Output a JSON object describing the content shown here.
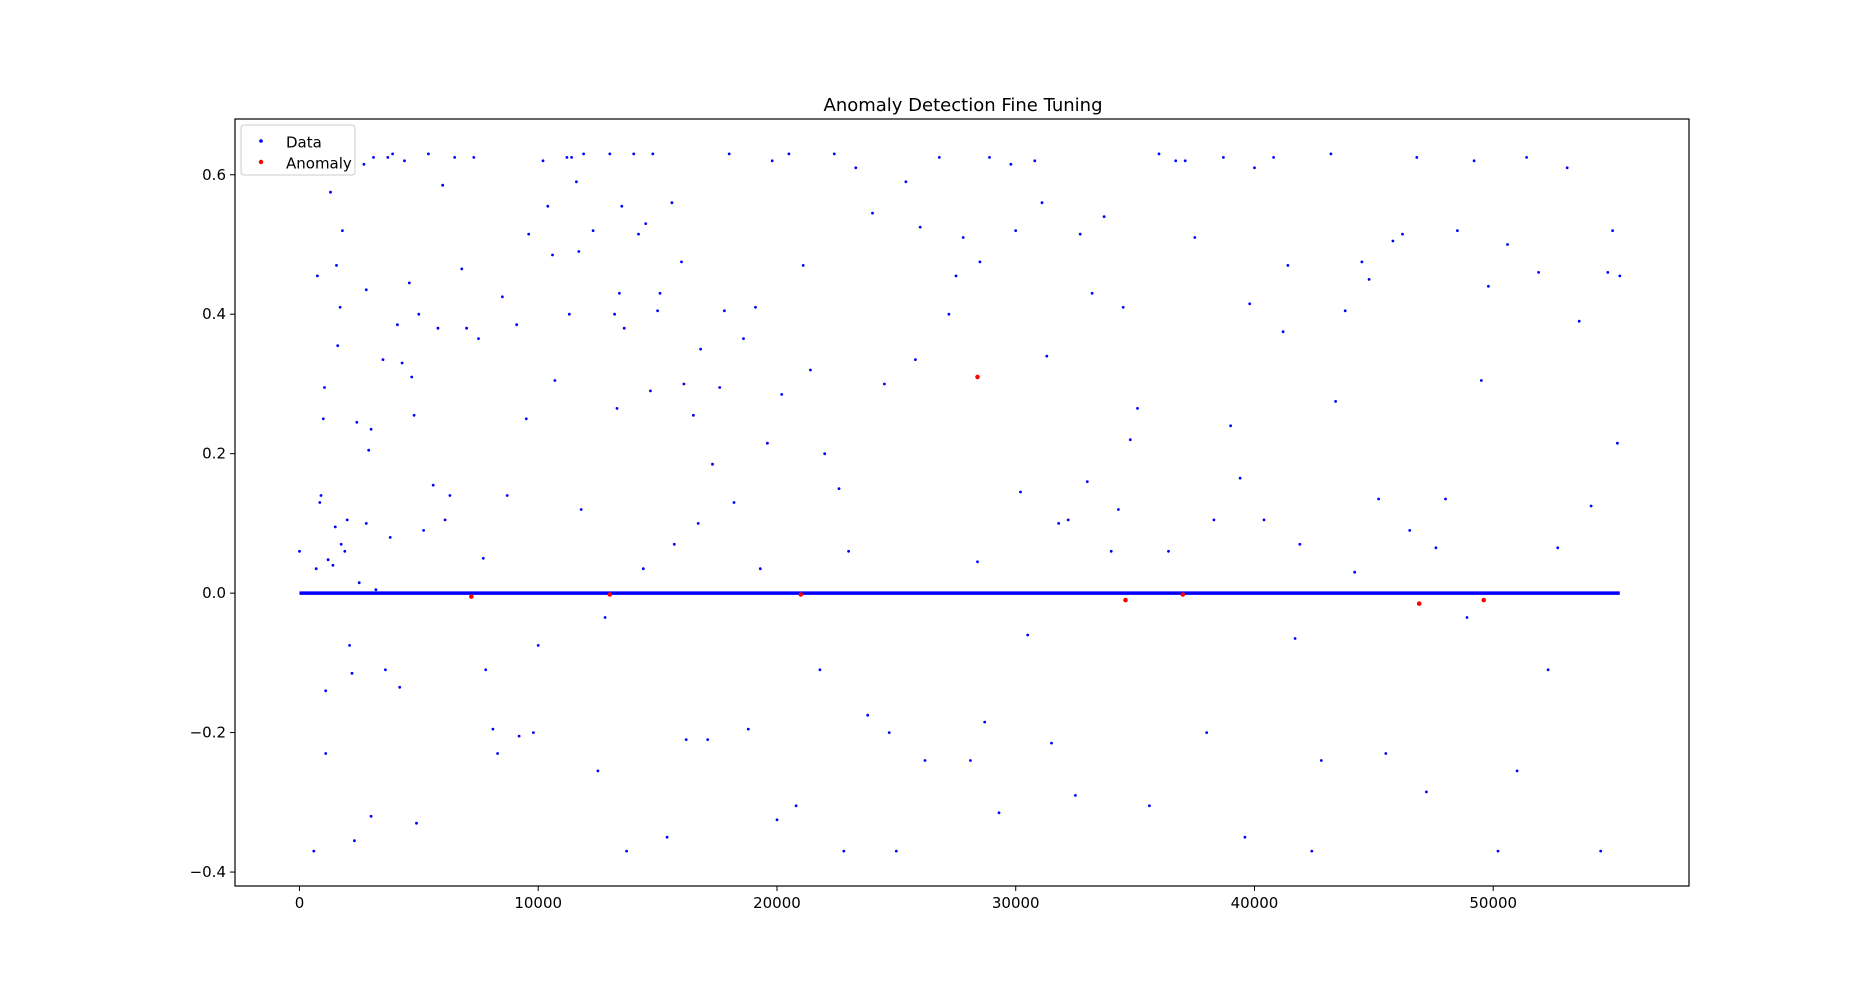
{
  "chart_data": {
    "type": "scatter",
    "title": "Anomaly Detection Fine Tuning",
    "xlabel": "",
    "ylabel": "",
    "xlim": [
      -2700,
      58200
    ],
    "ylim": [
      -0.42,
      0.68
    ],
    "x_ticks": [
      0,
      10000,
      20000,
      30000,
      40000,
      50000
    ],
    "x_tick_labels": [
      "0",
      "10000",
      "20000",
      "30000",
      "40000",
      "50000"
    ],
    "y_ticks": [
      -0.4,
      -0.2,
      0.0,
      0.2,
      0.4,
      0.6
    ],
    "y_tick_labels": [
      "−0.4",
      "−0.2",
      "0.0",
      "0.2",
      "0.4",
      "0.6"
    ],
    "grid": false,
    "legend_position": "top-left",
    "baseline": {
      "x_start": 0,
      "x_end": 55300,
      "y": 0.0,
      "color": "#0000ff"
    },
    "series": [
      {
        "name": "Data",
        "color": "#0000ff",
        "points": [
          [
            0,
            0.06
          ],
          [
            600,
            -0.37
          ],
          [
            700,
            0.035
          ],
          [
            750,
            0.455
          ],
          [
            850,
            0.13
          ],
          [
            900,
            0.14
          ],
          [
            1000,
            0.25
          ],
          [
            1050,
            0.295
          ],
          [
            1100,
            -0.23
          ],
          [
            1100,
            -0.14
          ],
          [
            1200,
            0.048
          ],
          [
            1300,
            0.575
          ],
          [
            1400,
            0.04
          ],
          [
            1500,
            0.095
          ],
          [
            1550,
            0.47
          ],
          [
            1600,
            0.355
          ],
          [
            1700,
            0.41
          ],
          [
            1750,
            0.07
          ],
          [
            1800,
            0.52
          ],
          [
            1900,
            0.06
          ],
          [
            2000,
            0.105
          ],
          [
            2100,
            -0.075
          ],
          [
            2200,
            -0.115
          ],
          [
            2300,
            -0.355
          ],
          [
            2400,
            0.245
          ],
          [
            2500,
            0.015
          ],
          [
            2700,
            0.615
          ],
          [
            2800,
            0.435
          ],
          [
            2800,
            0.1
          ],
          [
            2900,
            0.205
          ],
          [
            3000,
            -0.32
          ],
          [
            3000,
            0.235
          ],
          [
            3100,
            0.625
          ],
          [
            3200,
            0.005
          ],
          [
            3500,
            0.335
          ],
          [
            3600,
            -0.11
          ],
          [
            3700,
            0.625
          ],
          [
            3800,
            0.08
          ],
          [
            3900,
            0.63
          ],
          [
            4100,
            0.385
          ],
          [
            4200,
            -0.135
          ],
          [
            4300,
            0.33
          ],
          [
            4400,
            0.62
          ],
          [
            4600,
            0.445
          ],
          [
            4700,
            0.31
          ],
          [
            4800,
            0.255
          ],
          [
            4900,
            -0.33
          ],
          [
            5000,
            0.4
          ],
          [
            5200,
            0.09
          ],
          [
            5400,
            0.63
          ],
          [
            5600,
            0.155
          ],
          [
            5800,
            0.38
          ],
          [
            6000,
            0.585
          ],
          [
            6100,
            0.105
          ],
          [
            6300,
            0.14
          ],
          [
            6500,
            0.625
          ],
          [
            6800,
            0.465
          ],
          [
            7000,
            0.38
          ],
          [
            7300,
            0.625
          ],
          [
            7500,
            0.365
          ],
          [
            7700,
            0.05
          ],
          [
            7800,
            -0.11
          ],
          [
            8100,
            -0.195
          ],
          [
            8300,
            -0.23
          ],
          [
            8500,
            0.425
          ],
          [
            8700,
            0.14
          ],
          [
            9100,
            0.385
          ],
          [
            9200,
            -0.205
          ],
          [
            9500,
            0.25
          ],
          [
            9600,
            0.515
          ],
          [
            9800,
            -0.2
          ],
          [
            10000,
            -0.075
          ],
          [
            10200,
            0.62
          ],
          [
            10400,
            0.555
          ],
          [
            10600,
            0.485
          ],
          [
            10700,
            0.305
          ],
          [
            11200,
            0.625
          ],
          [
            11300,
            0.4
          ],
          [
            11400,
            0.625
          ],
          [
            11600,
            0.59
          ],
          [
            11700,
            0.49
          ],
          [
            11800,
            0.12
          ],
          [
            11900,
            0.63
          ],
          [
            12300,
            0.52
          ],
          [
            12500,
            -0.255
          ],
          [
            12800,
            -0.035
          ],
          [
            13000,
            0.63
          ],
          [
            13200,
            0.4
          ],
          [
            13300,
            0.265
          ],
          [
            13400,
            0.43
          ],
          [
            13500,
            0.555
          ],
          [
            13600,
            0.38
          ],
          [
            13700,
            -0.37
          ],
          [
            14000,
            0.63
          ],
          [
            14200,
            0.515
          ],
          [
            14400,
            0.035
          ],
          [
            14500,
            0.53
          ],
          [
            14700,
            0.29
          ],
          [
            14800,
            0.63
          ],
          [
            15000,
            0.405
          ],
          [
            15100,
            0.43
          ],
          [
            15400,
            -0.35
          ],
          [
            15600,
            0.56
          ],
          [
            15700,
            0.07
          ],
          [
            16000,
            0.475
          ],
          [
            16100,
            0.3
          ],
          [
            16200,
            -0.21
          ],
          [
            16500,
            0.255
          ],
          [
            16700,
            0.1
          ],
          [
            16800,
            0.35
          ],
          [
            17100,
            -0.21
          ],
          [
            17300,
            0.185
          ],
          [
            17600,
            0.295
          ],
          [
            17800,
            0.405
          ],
          [
            18000,
            0.63
          ],
          [
            18200,
            0.13
          ],
          [
            18600,
            0.365
          ],
          [
            18800,
            -0.195
          ],
          [
            19100,
            0.41
          ],
          [
            19300,
            0.035
          ],
          [
            19600,
            0.215
          ],
          [
            19800,
            0.62
          ],
          [
            20000,
            -0.325
          ],
          [
            20200,
            0.285
          ],
          [
            20500,
            0.63
          ],
          [
            20800,
            -0.305
          ],
          [
            21100,
            0.47
          ],
          [
            21400,
            0.32
          ],
          [
            21800,
            -0.11
          ],
          [
            22000,
            0.2
          ],
          [
            22400,
            0.63
          ],
          [
            22600,
            0.15
          ],
          [
            22800,
            -0.37
          ],
          [
            23000,
            0.06
          ],
          [
            23300,
            0.61
          ],
          [
            23800,
            -0.175
          ],
          [
            24000,
            0.545
          ],
          [
            24500,
            0.3
          ],
          [
            24700,
            -0.2
          ],
          [
            25000,
            -0.37
          ],
          [
            25400,
            0.59
          ],
          [
            25800,
            0.335
          ],
          [
            26000,
            0.525
          ],
          [
            26200,
            -0.24
          ],
          [
            26800,
            0.625
          ],
          [
            27200,
            0.4
          ],
          [
            27500,
            0.455
          ],
          [
            27800,
            0.51
          ],
          [
            28100,
            -0.24
          ],
          [
            28400,
            0.045
          ],
          [
            28500,
            0.475
          ],
          [
            28700,
            -0.185
          ],
          [
            28900,
            0.625
          ],
          [
            29300,
            -0.315
          ],
          [
            29800,
            0.615
          ],
          [
            30000,
            0.52
          ],
          [
            30200,
            0.145
          ],
          [
            30500,
            -0.06
          ],
          [
            30800,
            0.62
          ],
          [
            31100,
            0.56
          ],
          [
            31300,
            0.34
          ],
          [
            31500,
            -0.215
          ],
          [
            31800,
            0.1
          ],
          [
            32200,
            0.105
          ],
          [
            32500,
            -0.29
          ],
          [
            32700,
            0.515
          ],
          [
            33000,
            0.16
          ],
          [
            33200,
            0.43
          ],
          [
            33700,
            0.54
          ],
          [
            34000,
            0.06
          ],
          [
            34300,
            0.12
          ],
          [
            34500,
            0.41
          ],
          [
            34800,
            0.22
          ],
          [
            35100,
            0.265
          ],
          [
            35600,
            -0.305
          ],
          [
            36000,
            0.63
          ],
          [
            36400,
            0.06
          ],
          [
            36700,
            0.62
          ],
          [
            37100,
            0.62
          ],
          [
            37500,
            0.51
          ],
          [
            38000,
            -0.2
          ],
          [
            38300,
            0.105
          ],
          [
            38700,
            0.625
          ],
          [
            39000,
            0.24
          ],
          [
            39400,
            0.165
          ],
          [
            39600,
            -0.35
          ],
          [
            39800,
            0.415
          ],
          [
            40000,
            0.61
          ],
          [
            40400,
            0.105
          ],
          [
            40800,
            0.625
          ],
          [
            41200,
            0.375
          ],
          [
            41400,
            0.47
          ],
          [
            41700,
            -0.065
          ],
          [
            41900,
            0.07
          ],
          [
            42400,
            -0.37
          ],
          [
            42800,
            -0.24
          ],
          [
            43200,
            0.63
          ],
          [
            43400,
            0.275
          ],
          [
            43800,
            0.405
          ],
          [
            44200,
            0.03
          ],
          [
            44500,
            0.475
          ],
          [
            44800,
            0.45
          ],
          [
            45200,
            0.135
          ],
          [
            45500,
            -0.23
          ],
          [
            45800,
            0.505
          ],
          [
            46200,
            0.515
          ],
          [
            46500,
            0.09
          ],
          [
            46800,
            0.625
          ],
          [
            47200,
            -0.285
          ],
          [
            47600,
            0.065
          ],
          [
            48000,
            0.135
          ],
          [
            48500,
            0.52
          ],
          [
            48900,
            -0.035
          ],
          [
            49200,
            0.62
          ],
          [
            49500,
            0.305
          ],
          [
            49800,
            0.44
          ],
          [
            50200,
            -0.37
          ],
          [
            50600,
            0.5
          ],
          [
            51000,
            -0.255
          ],
          [
            51400,
            0.625
          ],
          [
            51900,
            0.46
          ],
          [
            52300,
            -0.11
          ],
          [
            52700,
            0.065
          ],
          [
            53100,
            0.61
          ],
          [
            53600,
            0.39
          ],
          [
            54100,
            0.125
          ],
          [
            54500,
            -0.37
          ],
          [
            54800,
            0.46
          ],
          [
            55000,
            0.52
          ],
          [
            55200,
            0.215
          ],
          [
            55300,
            0.455
          ]
        ]
      },
      {
        "name": "Anomaly",
        "color": "#ff0000",
        "points": [
          [
            28400,
            0.31
          ],
          [
            34600,
            -0.01
          ],
          [
            46900,
            -0.015
          ],
          [
            49600,
            -0.01
          ],
          [
            7200,
            -0.005
          ],
          [
            13000,
            -0.002
          ],
          [
            21000,
            -0.002
          ],
          [
            37000,
            -0.002
          ]
        ]
      }
    ]
  }
}
